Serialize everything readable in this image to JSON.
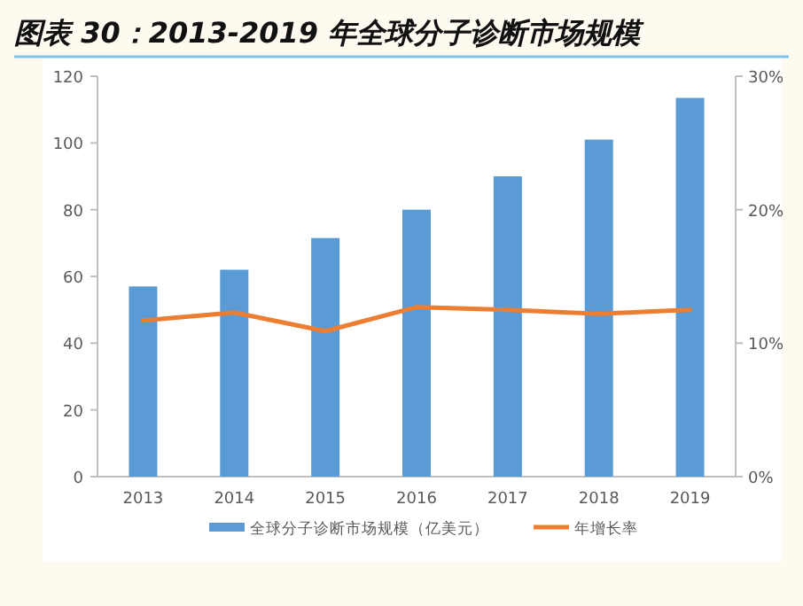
{
  "chart_data": {
    "type": "bar",
    "title": "图表 30：2013-2019 年全球分子诊断市场规模",
    "categories": [
      "2013",
      "2014",
      "2015",
      "2016",
      "2017",
      "2018",
      "2019"
    ],
    "series": [
      {
        "name": "全球分子诊断市场规模（亿美元）",
        "color": "#5b9bd5",
        "values": [
          57,
          62,
          71.5,
          80,
          90,
          101,
          113.5
        ]
      },
      {
        "name": "年增长率",
        "type": "line",
        "axis": "y2",
        "color": "#ed7d31",
        "values": [
          11.7,
          12.3,
          10.9,
          12.7,
          12.5,
          12.2,
          12.5
        ]
      }
    ],
    "ylim": [
      0,
      120
    ],
    "yticks": [
      0,
      20,
      40,
      60,
      80,
      100,
      120
    ],
    "y2lim": [
      0,
      30
    ],
    "y2ticks": [
      {
        "value": 0,
        "label": "0%"
      },
      {
        "value": 10,
        "label": "10%"
      },
      {
        "value": 20,
        "label": "20%"
      },
      {
        "value": 30,
        "label": "30%"
      }
    ],
    "legend": "bottom",
    "grid": false,
    "marker": "none",
    "line_style": "solid"
  }
}
